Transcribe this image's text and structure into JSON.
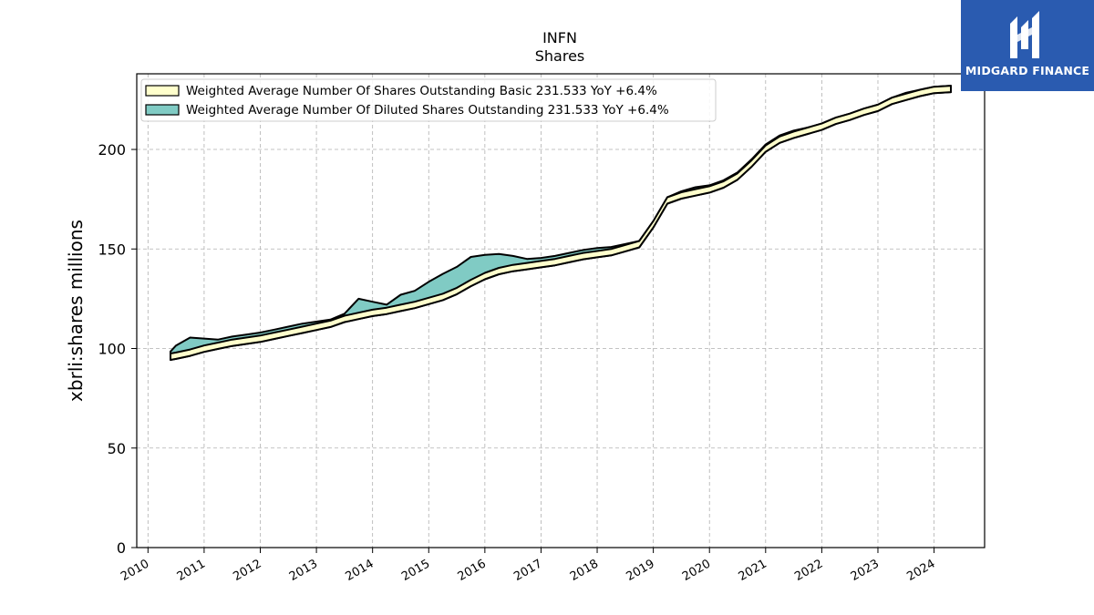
{
  "chart_data": {
    "type": "area",
    "title": "INFN",
    "subtitle": "Shares",
    "ylabel": "xbrli:shares millions",
    "xlabel": "",
    "ylim": [
      0,
      238
    ],
    "xlim": [
      2009.8,
      2024.9
    ],
    "yticks": [
      0,
      50,
      100,
      150,
      200
    ],
    "xticks": [
      "2010",
      "2011",
      "2012",
      "2013",
      "2014",
      "2015",
      "2016",
      "2017",
      "2018",
      "2019",
      "2020",
      "2021",
      "2022",
      "2023",
      "2024"
    ],
    "grid": true,
    "legend_position": "top-left",
    "series": [
      {
        "name": "Weighted Average Number Of Shares Outstanding Basic",
        "legend_label": "Weighted Average Number Of Shares Outstanding Basic  231.533 YoY +6.4%",
        "color": "#ffffcc",
        "x": [
          2010.4,
          2010.5,
          2010.75,
          2011.0,
          2011.25,
          2011.5,
          2011.75,
          2012.0,
          2012.25,
          2012.5,
          2012.75,
          2013.0,
          2013.25,
          2013.5,
          2013.75,
          2014.0,
          2014.25,
          2014.5,
          2014.75,
          2015.0,
          2015.25,
          2015.5,
          2015.75,
          2016.0,
          2016.25,
          2016.5,
          2016.75,
          2017.0,
          2017.25,
          2017.5,
          2017.75,
          2018.0,
          2018.25,
          2018.5,
          2018.75,
          2019.0,
          2019.25,
          2019.5,
          2019.75,
          2020.0,
          2020.25,
          2020.5,
          2020.75,
          2021.0,
          2021.25,
          2021.5,
          2021.75,
          2022.0,
          2022.25,
          2022.5,
          2022.75,
          2023.0,
          2023.25,
          2023.5,
          2023.75,
          2024.0,
          2024.3
        ],
        "values": [
          97.5,
          98.0,
          99.5,
          101.5,
          103.0,
          104.5,
          105.5,
          106.5,
          108.0,
          109.5,
          111.0,
          112.5,
          114.0,
          116.5,
          118.0,
          119.5,
          120.5,
          122.0,
          123.5,
          125.5,
          127.5,
          130.5,
          134.5,
          138.0,
          140.5,
          142.0,
          143.0,
          144.0,
          145.0,
          146.5,
          148.0,
          149.0,
          150.0,
          152.0,
          154.0,
          164.0,
          176.0,
          178.5,
          180.0,
          181.5,
          184.0,
          188.0,
          194.5,
          202.0,
          206.5,
          209.0,
          211.0,
          213.0,
          216.0,
          218.0,
          220.5,
          222.5,
          226.0,
          228.0,
          230.0,
          231.5,
          232.0
        ]
      },
      {
        "name": "Weighted Average Number Of Diluted Shares Outstanding",
        "legend_label": "Weighted Average Number Of Diluted Shares Outstanding  231.533 YoY +6.4%",
        "color": "#80cbc4",
        "x": [
          2010.4,
          2010.5,
          2010.75,
          2011.0,
          2011.25,
          2011.5,
          2011.75,
          2012.0,
          2012.25,
          2012.5,
          2012.75,
          2013.0,
          2013.25,
          2013.5,
          2013.75,
          2014.0,
          2014.25,
          2014.5,
          2014.75,
          2015.0,
          2015.25,
          2015.5,
          2015.75,
          2016.0,
          2016.25,
          2016.5,
          2016.75,
          2017.0,
          2017.25,
          2017.5,
          2017.75,
          2018.0,
          2018.25,
          2018.5,
          2018.75,
          2019.0,
          2019.25,
          2019.5,
          2019.75,
          2020.0,
          2020.25,
          2020.5,
          2020.75,
          2021.0,
          2021.25,
          2021.5,
          2021.75,
          2022.0,
          2022.25,
          2022.5,
          2022.75,
          2023.0,
          2023.25,
          2023.5,
          2023.75,
          2024.0,
          2024.3
        ],
        "values": [
          98.5,
          101.5,
          105.5,
          105.0,
          104.5,
          106.0,
          107.0,
          108.0,
          109.5,
          111.0,
          112.5,
          113.5,
          114.5,
          117.5,
          125.0,
          123.5,
          122.0,
          127.0,
          129.0,
          133.5,
          137.5,
          141.0,
          146.0,
          147.0,
          147.5,
          146.5,
          145.0,
          145.5,
          146.5,
          148.0,
          149.5,
          150.5,
          151.0,
          152.5,
          154.0,
          164.0,
          176.0,
          179.0,
          181.0,
          182.0,
          184.5,
          188.5,
          195.0,
          202.5,
          207.0,
          209.5,
          211.0,
          213.0,
          216.0,
          218.0,
          220.5,
          222.5,
          226.0,
          228.5,
          230.0,
          231.5,
          232.0
        ]
      }
    ]
  },
  "logo": {
    "brand": "MIDGARD FINANCE"
  }
}
